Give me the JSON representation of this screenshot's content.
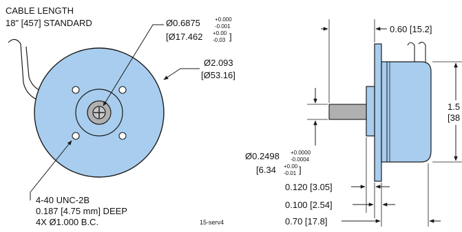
{
  "colors": {
    "part_fill": "#a8cdee",
    "part_stroke": "#1a1a1a",
    "hub_fill": "#b0b0b0",
    "line": "#1a1a1a",
    "background": "#ffffff"
  },
  "front_view": {
    "cable_label_line1": "CABLE LENGTH",
    "cable_label_line2": "18\" [457] STANDARD",
    "pilot_dia_label": "Ø0.6875",
    "pilot_dia_tol_upper": "+0.000",
    "pilot_dia_tol_lower": "-0.001",
    "pilot_dia_metric_label": "[Ø17.462",
    "pilot_dia_metric_tol_upper": "+0.00",
    "pilot_dia_metric_tol_lower": "-0.03",
    "pilot_dia_metric_close": "]",
    "body_dia_label": "Ø2.093",
    "body_dia_metric_label": "[Ø53.16]",
    "hole_label_line1": "4-40 UNC-2B",
    "hole_label_line2": "0.187 [4.75 mm] DEEP",
    "hole_label_line3": "4X Ø1.000 B.C.",
    "figure_id": "15-serv4"
  },
  "side_view": {
    "flange_thickness_label": "0.60 [15.2]",
    "length_label_partial": "1.5",
    "length_metric_partial": "[38",
    "shaft_dia_label": "Ø0.2498",
    "shaft_dia_tol_upper": "+0.0000",
    "shaft_dia_tol_lower": "-0.0004",
    "shaft_dia_metric_label": "[6.34",
    "shaft_dia_metric_tol_upper": "+0.00",
    "shaft_dia_metric_tol_lower": "-0.01",
    "shaft_dia_metric_close": "]",
    "pilot_len_label": "0.120 [3.05]",
    "flange_len_label": "0.100 [2.54]",
    "overall_label": "0.70 [17.8]"
  }
}
